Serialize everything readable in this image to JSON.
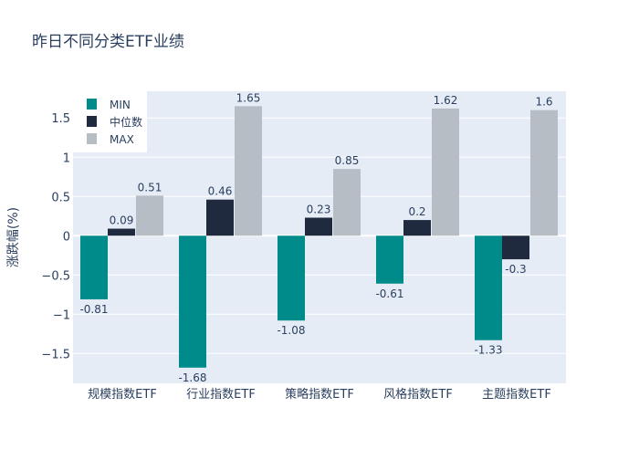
{
  "chart_data": {
    "type": "bar",
    "title": "昨日不同分类ETF业绩",
    "xlabel": "",
    "ylabel": "涨跌幅(%)",
    "ylim": [
      -1.88,
      1.84
    ],
    "yticks": [
      -1.5,
      -1,
      -0.5,
      0,
      0.5,
      1,
      1.5
    ],
    "ytick_labels": [
      "−1.5",
      "−1",
      "−0.5",
      "0",
      "0.5",
      "1",
      "1.5"
    ],
    "categories": [
      "规模指数ETF",
      "行业指数ETF",
      "策略指数ETF",
      "风格指数ETF",
      "主题指数ETF"
    ],
    "series": [
      {
        "name": "MIN",
        "color": "#008b8b",
        "values": [
          -0.81,
          -1.68,
          -1.08,
          -0.61,
          -1.33
        ]
      },
      {
        "name": "中位数",
        "color": "#1f2a3f",
        "values": [
          0.09,
          0.46,
          0.23,
          0.2,
          -0.3
        ]
      },
      {
        "name": "MAX",
        "color": "#b7bdc5",
        "values": [
          0.51,
          1.65,
          0.85,
          1.62,
          1.6
        ]
      }
    ],
    "legend": "top-left",
    "grid": true
  }
}
